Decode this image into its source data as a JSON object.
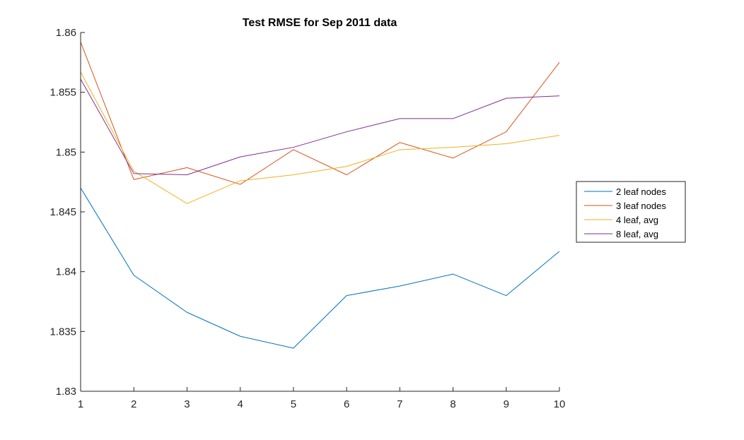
{
  "chart_data": {
    "type": "line",
    "title": "Test RMSE for Sep 2011 data",
    "xlabel": "",
    "ylabel": "",
    "x": [
      1,
      2,
      3,
      4,
      5,
      6,
      7,
      8,
      9,
      10
    ],
    "xlim": [
      1,
      10
    ],
    "ylim": [
      1.83,
      1.86
    ],
    "xticks": [
      "1",
      "2",
      "3",
      "4",
      "5",
      "6",
      "7",
      "8",
      "9",
      "10"
    ],
    "yticks": [
      1.83,
      1.835,
      1.84,
      1.845,
      1.85,
      1.855,
      1.86
    ],
    "ytick_labels": [
      "1.83",
      "1.835",
      "1.84",
      "1.845",
      "1.85",
      "1.855",
      "1.86"
    ],
    "grid": false,
    "legend_position": "outside-right",
    "series": [
      {
        "name": "2 leaf nodes",
        "color": "#0072BD",
        "values": [
          1.847,
          1.8397,
          1.8366,
          1.8346,
          1.8336,
          1.838,
          1.8388,
          1.8398,
          1.838,
          1.8417
        ]
      },
      {
        "name": "3 leaf nodes",
        "color": "#D95319",
        "values": [
          1.8592,
          1.8477,
          1.8487,
          1.8473,
          1.8502,
          1.8481,
          1.8508,
          1.8495,
          1.8517,
          1.8575
        ]
      },
      {
        "name": "4 leaf, avg",
        "color": "#EDB120",
        "values": [
          1.8567,
          1.8484,
          1.8457,
          1.8476,
          1.8481,
          1.8488,
          1.8502,
          1.8504,
          1.8507,
          1.8514
        ]
      },
      {
        "name": "8 leaf, avg",
        "color": "#7E2F8E",
        "values": [
          1.8561,
          1.8482,
          1.8481,
          1.8496,
          1.8504,
          1.8517,
          1.8528,
          1.8528,
          1.8545,
          1.8547
        ]
      }
    ]
  }
}
